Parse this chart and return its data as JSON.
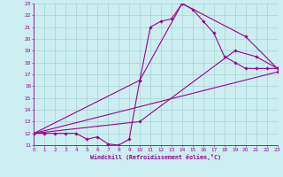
{
  "xlabel": "Windchill (Refroidissement éolien,°C)",
  "xlim": [
    0,
    23
  ],
  "ylim": [
    11,
    23
  ],
  "yticks": [
    11,
    12,
    13,
    14,
    15,
    16,
    17,
    18,
    19,
    20,
    21,
    22,
    23
  ],
  "xticks": [
    0,
    1,
    2,
    3,
    4,
    5,
    6,
    7,
    8,
    9,
    10,
    11,
    12,
    13,
    14,
    15,
    16,
    17,
    18,
    19,
    20,
    21,
    22,
    23
  ],
  "background_color": "#cceef0",
  "grid_color": "#99cccc",
  "line_color": "#990099",
  "line_width": 0.8,
  "marker": "D",
  "marker_size": 1.8,
  "curves": [
    {
      "x": [
        0,
        1,
        2,
        3,
        4,
        5,
        6,
        7,
        8,
        9,
        10,
        11,
        12,
        13,
        14,
        15,
        16,
        17,
        18,
        19,
        20,
        21,
        22,
        23
      ],
      "y": [
        12,
        12,
        12,
        12,
        12,
        11.5,
        11.7,
        11.1,
        11.0,
        11.5,
        16.5,
        21.0,
        21.5,
        21.7,
        23,
        22.5,
        21.5,
        20.5,
        18.5,
        18.0,
        17.5,
        17.5,
        17.5,
        17.5
      ]
    },
    {
      "x": [
        0,
        10,
        14,
        20,
        23
      ],
      "y": [
        12,
        16.5,
        23,
        20.2,
        17.5
      ]
    },
    {
      "x": [
        0,
        10,
        19,
        21,
        23
      ],
      "y": [
        12,
        13.0,
        19.0,
        18.5,
        17.5
      ]
    },
    {
      "x": [
        0,
        23
      ],
      "y": [
        12,
        17.2
      ]
    }
  ]
}
